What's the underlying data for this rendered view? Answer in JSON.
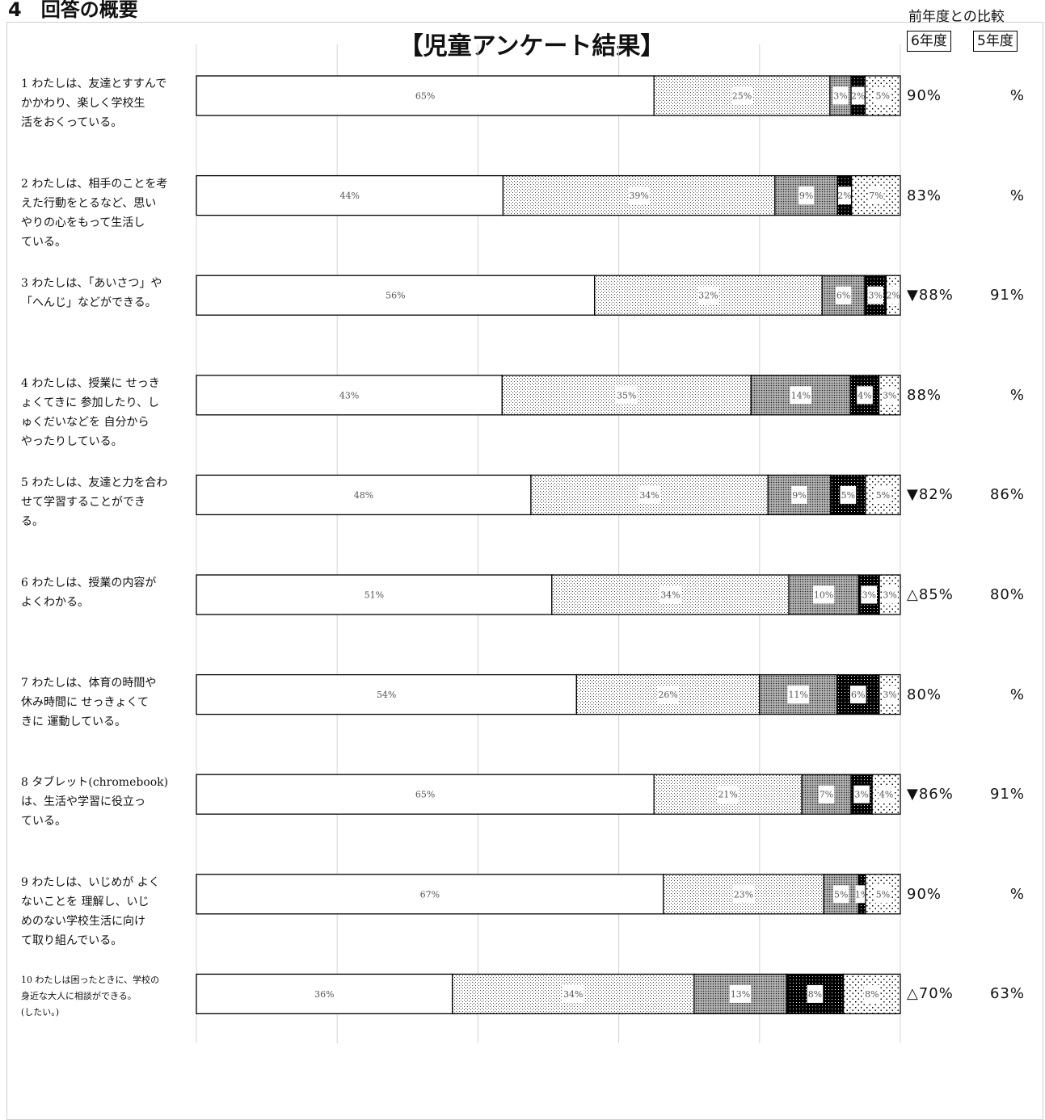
{
  "section_title": "4　回答の概要",
  "chart_title": "【児童アンケート結果】",
  "comparison_header": "前年度との比較",
  "year_current": "6年度",
  "year_prev": "5年度",
  "chart_data": {
    "type": "bar",
    "orientation": "horizontal",
    "stacked": true,
    "xlim": [
      0,
      100
    ],
    "grid": true,
    "categories": [
      "1 わたしは、友達とすすんで\nかかわり、楽しく学校生\n活をおくっている。",
      "2 わたしは、相手のことを考\nえた行動をとるなど、思い\nやりの心をもって生活し\nている。",
      "3 わたしは、「あいさつ」や\n「へんじ」などができる。",
      "4 わたしは、授業に せっき\nょくてきに 参加したり、し\nゅくだいなどを 自分から\nやったりしている。",
      "5 わたしは、友達と力を合わ\nせて学習することができ\nる。",
      "6 わたしは、授業の内容が\nよくわかる。",
      "7 わたしは、体育の時間や\n休み時間に せっきょくて\nきに 運動している。",
      "8 タブレット(chromebook)\nは、生活や学習に役立っ\nている。",
      "9 わたしは、いじめが よく\nないことを 理解し、いじ\nめのない学校生活に向け\nて取り組んでいる。",
      "10 わたしは困ったときに、学校の\n身近な大人に相談ができる。\n(したい。)"
    ],
    "series": [
      {
        "values": [
          65,
          44,
          56,
          43,
          48,
          51,
          54,
          65,
          67,
          36
        ],
        "pattern": "white"
      },
      {
        "values": [
          25,
          39,
          32,
          35,
          34,
          34,
          26,
          21,
          23,
          34
        ],
        "pattern": "light-dots"
      },
      {
        "values": [
          3,
          9,
          6,
          14,
          9,
          10,
          11,
          7,
          5,
          13
        ],
        "pattern": "dense-dots"
      },
      {
        "values": [
          2,
          2,
          3,
          4,
          5,
          3,
          6,
          3,
          1,
          8
        ],
        "pattern": "black-dots"
      },
      {
        "values": [
          5,
          7,
          2,
          3,
          5,
          3,
          3,
          4,
          5,
          8
        ],
        "pattern": "sparse-dots"
      }
    ],
    "labels": [
      [
        "65%",
        "25%",
        "3%",
        "2%",
        "5%"
      ],
      [
        "44%",
        "39%",
        "9%",
        "2%",
        "7%"
      ],
      [
        "56%",
        "32%",
        "6%",
        "3%",
        "2%"
      ],
      [
        "43%",
        "35%",
        "14%",
        "4%",
        "3%"
      ],
      [
        "48%",
        "34%",
        "9%",
        "5%",
        "5%"
      ],
      [
        "51%",
        "34%",
        "10%",
        "3%",
        "3%"
      ],
      [
        "54%",
        "26%",
        "11%",
        "6%",
        "3%"
      ],
      [
        "65%",
        "21%",
        "7%",
        "3%",
        "4%"
      ],
      [
        "67%",
        "23%",
        "5%",
        "1%",
        "5%"
      ],
      [
        "36%",
        "34%",
        "13%",
        "8%",
        "8%"
      ]
    ]
  },
  "comparison": [
    {
      "current": "90%",
      "prev": "%"
    },
    {
      "current": "83%",
      "prev": "%"
    },
    {
      "current": "▼88%",
      "prev": "91%"
    },
    {
      "current": "88%",
      "prev": "%"
    },
    {
      "current": "▼82%",
      "prev": "86%"
    },
    {
      "current": "△85%",
      "prev": "80%"
    },
    {
      "current": "80%",
      "prev": "%"
    },
    {
      "current": "▼86%",
      "prev": "91%"
    },
    {
      "current": "90%",
      "prev": "%"
    },
    {
      "current": "△70%",
      "prev": "63%"
    }
  ]
}
